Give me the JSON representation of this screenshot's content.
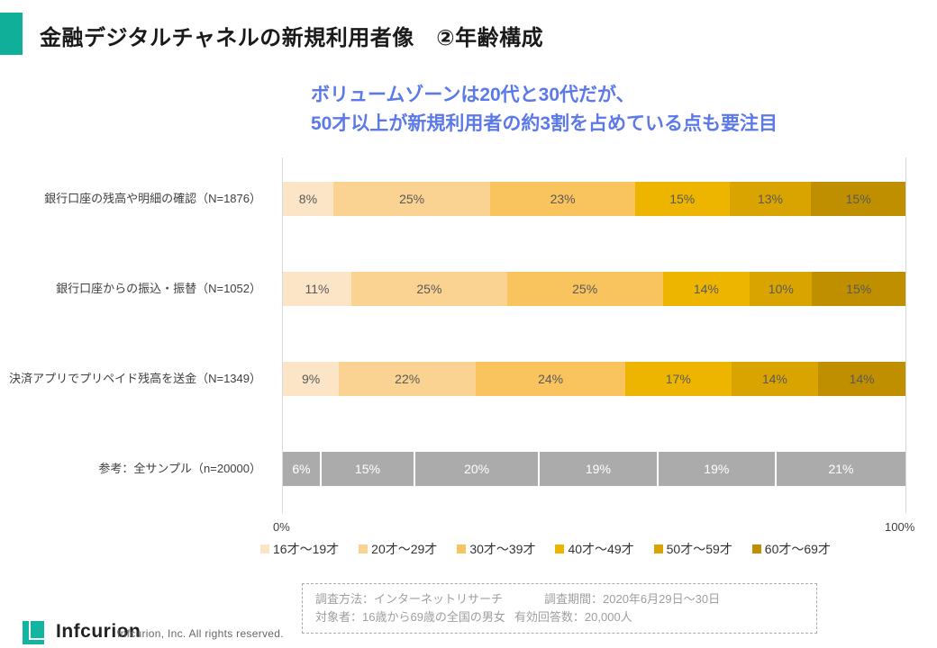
{
  "slide": {
    "title": "金融デジタルチャネルの新規利用者像　②年齢構成",
    "subtitle_line1": "ボリュームゾーンは20代と30代だが、",
    "subtitle_line2": "50才以上が新規利用者の約3割を占めている点も要注目"
  },
  "chart_data": {
    "type": "bar",
    "orientation": "horizontal",
    "stacked": true,
    "grid": false,
    "legend_position": "bottom",
    "xlim": [
      0,
      100
    ],
    "x_axis_labels": [
      "0%",
      "100%"
    ],
    "value_suffix": "%",
    "categories": [
      "銀行口座の残高や明細の確認（N=1876）",
      "銀行口座からの振込・振替（N=1052）",
      "決済アプリでプリペイド残高を送金（N=1349）",
      "参考：全サンプル（n=20000）"
    ],
    "series": [
      {
        "name": "16才～19才",
        "color": "#FBE5C6",
        "values": [
          8,
          11,
          9,
          6
        ]
      },
      {
        "name": "20才～29才",
        "color": "#FAD291",
        "values": [
          25,
          25,
          22,
          15
        ]
      },
      {
        "name": "30才～39才",
        "color": "#F9C35D",
        "values": [
          23,
          25,
          24,
          20
        ]
      },
      {
        "name": "40才～49才",
        "color": "#EDB500",
        "values": [
          15,
          14,
          17,
          19
        ]
      },
      {
        "name": "50才～59才",
        "color": "#D9A400",
        "values": [
          13,
          10,
          14,
          19
        ]
      },
      {
        "name": "60才～69才",
        "color": "#BF8F00",
        "values": [
          15,
          15,
          14,
          21
        ]
      }
    ],
    "reference_row_index": 3,
    "reference_color": "#ABABAB"
  },
  "note": {
    "line1_left": "調査方法：インターネットリサーチ",
    "line1_right": "調査期間：2020年6月29日～30日",
    "line2_left": "対象者：16歳から69歳の全国の男女",
    "line2_right": "有効回答数：20,000人"
  },
  "footer": {
    "logo_text": "Infcurion",
    "copyright": "Infcurion, Inc.  All rights reserved."
  },
  "colors": {
    "accent_teal": "#10AF99",
    "subtitle_blue": "#5B79E8",
    "axis_line": "#D9D9D9",
    "value_label": "#595959",
    "reference_value_label": "#FFFFFF",
    "note_text": "#9E9E9E"
  }
}
